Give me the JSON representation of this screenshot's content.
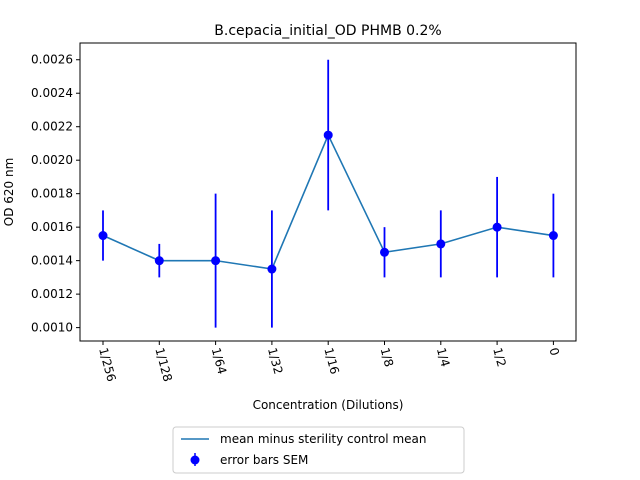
{
  "chart_data": {
    "type": "line",
    "title": "B.cepacia_initial_OD PHMB 0.2%",
    "xlabel": "Concentration (Dilutions)",
    "ylabel": "OD 620 nm",
    "categories": [
      "1/256",
      "1/128",
      "1/64",
      "1/32",
      "1/16",
      "1/8",
      "1/4",
      "1/2",
      "0"
    ],
    "ylim": [
      0.00092,
      0.0027
    ],
    "yticks": [
      "0.0010",
      "0.0012",
      "0.0014",
      "0.0016",
      "0.0018",
      "0.0020",
      "0.0022",
      "0.0024",
      "0.0026"
    ],
    "series": [
      {
        "name": "mean minus sterility control mean",
        "values": [
          0.00155,
          0.0014,
          0.0014,
          0.00135,
          0.00215,
          0.00145,
          0.0015,
          0.0016,
          0.00155
        ],
        "color": "#1f77b4"
      },
      {
        "name": "error bars SEM",
        "values": [
          0.00155,
          0.0014,
          0.0014,
          0.00135,
          0.00215,
          0.00145,
          0.0015,
          0.0016,
          0.00155
        ],
        "err_low": [
          0.0014,
          0.0013,
          0.001,
          0.001,
          0.0017,
          0.0013,
          0.0013,
          0.0013,
          0.0013
        ],
        "err_high": [
          0.0017,
          0.0015,
          0.0018,
          0.0017,
          0.0026,
          0.0016,
          0.0017,
          0.0019,
          0.0018
        ],
        "color": "#0000ff"
      }
    ],
    "grid": false,
    "legend": "below"
  }
}
